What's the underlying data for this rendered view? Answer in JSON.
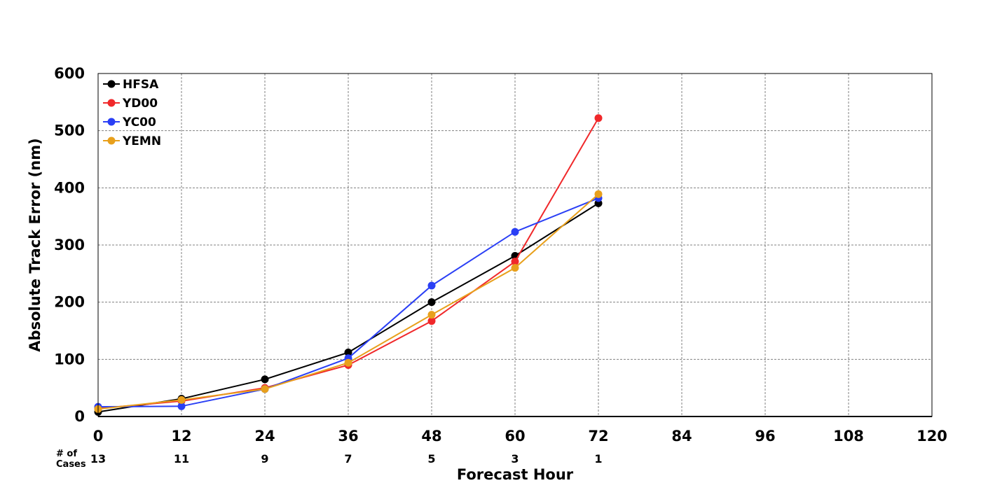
{
  "chart_data": {
    "type": "line",
    "title": "",
    "xlabel": "Forecast Hour",
    "ylabel": "Absolute Track Error (nm)",
    "xlim": [
      0,
      120
    ],
    "ylim": [
      0,
      600
    ],
    "x_ticks": [
      0,
      12,
      24,
      36,
      48,
      60,
      72,
      84,
      96,
      108,
      120
    ],
    "y_ticks": [
      0,
      100,
      200,
      300,
      400,
      500,
      600
    ],
    "grid": true,
    "legend_position": "top-left",
    "cases_label": "# of Cases",
    "cases": [
      {
        "x": 0,
        "n": "13"
      },
      {
        "x": 12,
        "n": "11"
      },
      {
        "x": 24,
        "n": "9"
      },
      {
        "x": 36,
        "n": "7"
      },
      {
        "x": 48,
        "n": "5"
      },
      {
        "x": 60,
        "n": "3"
      },
      {
        "x": 72,
        "n": "1"
      }
    ],
    "series": [
      {
        "name": "HFSA",
        "color": "#000000",
        "x": [
          0,
          12,
          24,
          36,
          48,
          60,
          72
        ],
        "values": [
          8,
          31,
          65,
          112,
          200,
          281,
          373
        ]
      },
      {
        "name": "YD00",
        "color": "#f0282a",
        "x": [
          0,
          12,
          24,
          36,
          48,
          60,
          72
        ],
        "values": [
          14,
          27,
          50,
          90,
          167,
          271,
          522
        ]
      },
      {
        "name": "YC00",
        "color": "#2a3ff5",
        "x": [
          0,
          12,
          24,
          36,
          48,
          60,
          72
        ],
        "values": [
          17,
          18,
          48,
          102,
          229,
          323,
          382
        ]
      },
      {
        "name": "YEMN",
        "color": "#e8a01c",
        "x": [
          0,
          12,
          24,
          36,
          48,
          60,
          72
        ],
        "values": [
          13,
          29,
          48,
          94,
          178,
          260,
          389
        ]
      }
    ]
  }
}
